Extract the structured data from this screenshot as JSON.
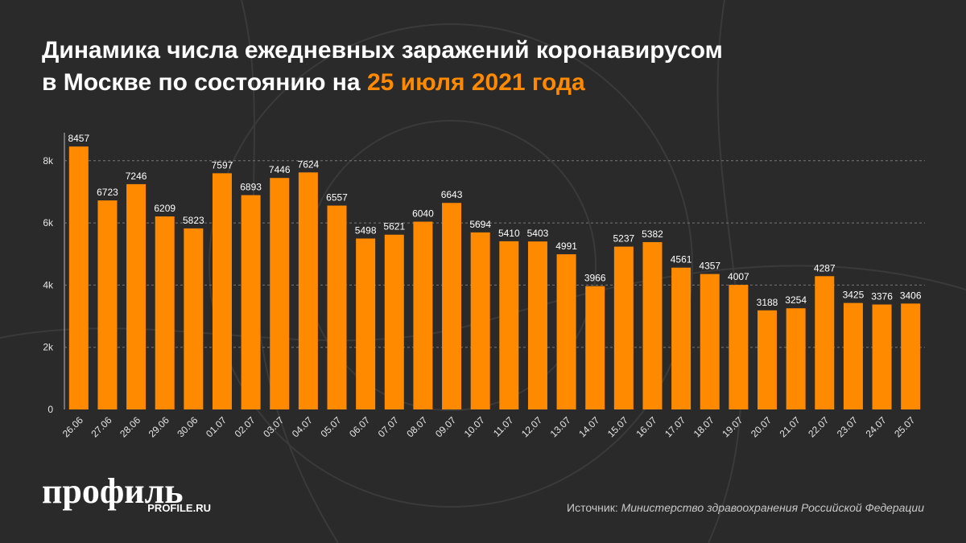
{
  "chart_data": {
    "type": "bar",
    "title_line1": "Динамика числа ежедневных заражений коронавирусом",
    "title_line2": "в Москве по состоянию на ",
    "title_highlight": "25 июля 2021 года",
    "categories": [
      "26.06",
      "27.06",
      "28.06",
      "29.06",
      "30.06",
      "01.07",
      "02.07",
      "03.07",
      "04.07",
      "05.07",
      "06.07",
      "07.07",
      "08.07",
      "09.07",
      "10.07",
      "11.07",
      "12.07",
      "13.07",
      "14.07",
      "15.07",
      "16.07",
      "17.07",
      "18.07",
      "19.07",
      "20.07",
      "21.07",
      "22.07",
      "23.07",
      "24.07",
      "25.07"
    ],
    "values": [
      8457,
      6723,
      7246,
      6209,
      5823,
      7597,
      6893,
      7446,
      7624,
      6557,
      5498,
      5621,
      6040,
      6643,
      5694,
      5410,
      5403,
      4991,
      3966,
      5237,
      5382,
      4561,
      4357,
      4007,
      3188,
      3254,
      4287,
      3425,
      3376,
      3406
    ],
    "color": "#ff8a00",
    "ylim": [
      0,
      8900
    ],
    "yticks": [
      0,
      {
        "value": 2000,
        "label": "2k"
      },
      {
        "value": 4000,
        "label": "4k"
      },
      {
        "value": 6000,
        "label": "6k"
      },
      {
        "value": 8000,
        "label": "8k"
      }
    ],
    "grid": true,
    "logo": "профиль",
    "logo_site": "PROFILE.RU",
    "source_label": "Источник:",
    "source": "Министерство здравоохранения Российской Федерации"
  }
}
